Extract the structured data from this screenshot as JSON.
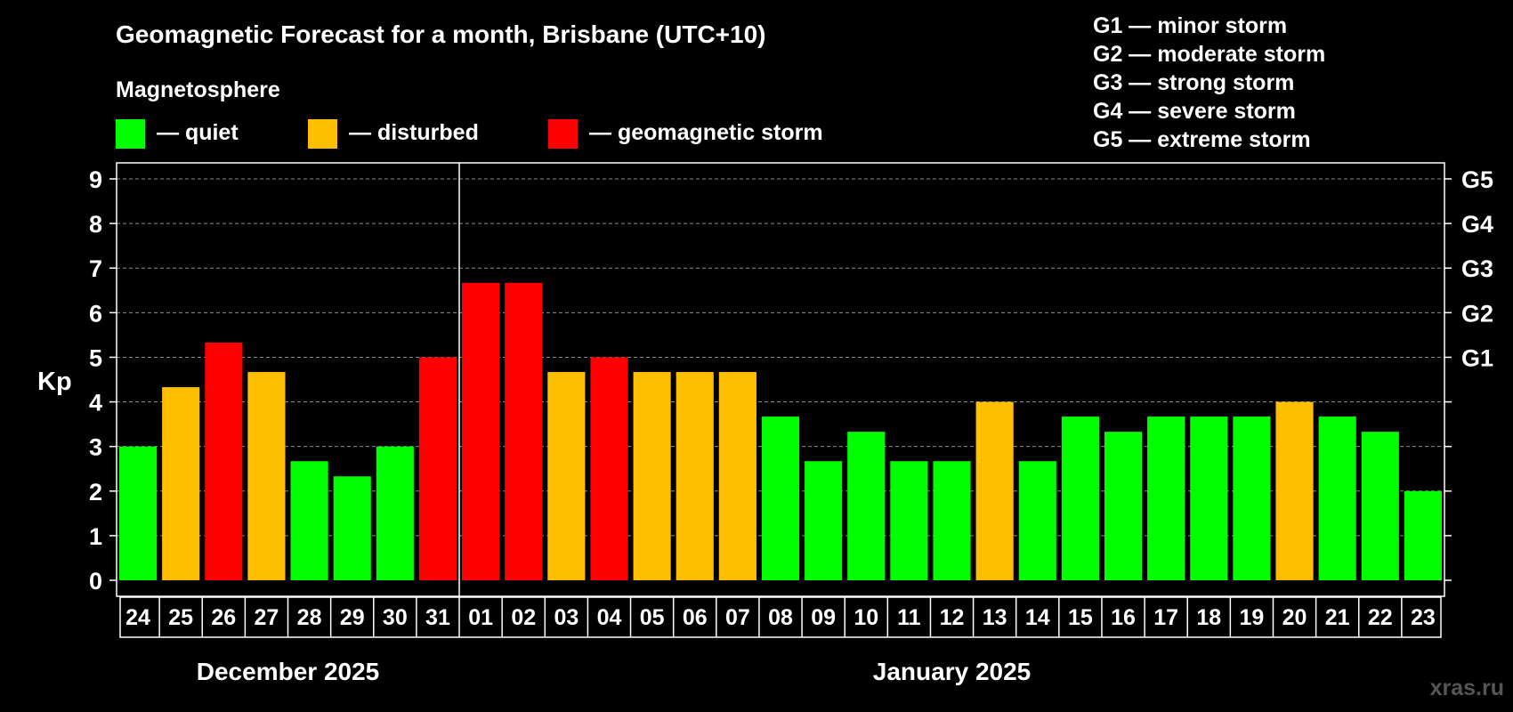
{
  "chart_data": {
    "type": "bar",
    "title": "Geomagnetic Forecast for a month, Brisbane (UTC+10)",
    "legend": {
      "heading": "Magnetosphere",
      "items": [
        {
          "label": "— quiet",
          "color": "#00ff00"
        },
        {
          "label": "— disturbed",
          "color": "#ffbf00"
        },
        {
          "label": "— geomagnetic storm",
          "color": "#ff0000"
        }
      ]
    },
    "storm_scale": [
      "G1 — minor storm",
      "G2 — moderate storm",
      "G3 — strong storm",
      "G4 — severe storm",
      "G5 — extreme storm"
    ],
    "ylabel": "Kp",
    "ylim": [
      0,
      9
    ],
    "yticks": [
      0,
      1,
      2,
      3,
      4,
      5,
      6,
      7,
      8,
      9
    ],
    "right_axis_labels": [
      {
        "kp": 5,
        "label": "G1"
      },
      {
        "kp": 6,
        "label": "G2"
      },
      {
        "kp": 7,
        "label": "G3"
      },
      {
        "kp": 8,
        "label": "G4"
      },
      {
        "kp": 9,
        "label": "G5"
      }
    ],
    "categories": [
      "24",
      "25",
      "26",
      "27",
      "28",
      "29",
      "30",
      "31",
      "01",
      "02",
      "03",
      "04",
      "05",
      "06",
      "07",
      "08",
      "09",
      "10",
      "11",
      "12",
      "13",
      "14",
      "15",
      "16",
      "17",
      "18",
      "19",
      "20",
      "21",
      "22",
      "23"
    ],
    "values": [
      3.0,
      4.33,
      5.33,
      4.67,
      2.67,
      2.33,
      3.0,
      5.0,
      6.67,
      6.67,
      4.67,
      5.0,
      4.67,
      4.67,
      4.67,
      3.67,
      2.67,
      3.33,
      2.67,
      2.67,
      4.0,
      2.67,
      3.67,
      3.33,
      3.67,
      3.67,
      3.67,
      4.0,
      3.67,
      3.33,
      2.0
    ],
    "status": [
      "quiet",
      "disturbed",
      "storm",
      "disturbed",
      "quiet",
      "quiet",
      "quiet",
      "storm",
      "storm",
      "storm",
      "disturbed",
      "storm",
      "disturbed",
      "disturbed",
      "disturbed",
      "quiet",
      "quiet",
      "quiet",
      "quiet",
      "quiet",
      "disturbed",
      "quiet",
      "quiet",
      "quiet",
      "quiet",
      "quiet",
      "quiet",
      "disturbed",
      "quiet",
      "quiet",
      "quiet"
    ],
    "status_colors": {
      "quiet": "#00ff00",
      "disturbed": "#ffbf00",
      "storm": "#ff0000"
    },
    "months": [
      {
        "label": "December 2025",
        "start_index": 0,
        "end_index": 7
      },
      {
        "label": "January 2025",
        "start_index": 8,
        "end_index": 30
      }
    ],
    "month_divider_after_index": 7,
    "grid": true
  },
  "watermark": "xras.ru"
}
